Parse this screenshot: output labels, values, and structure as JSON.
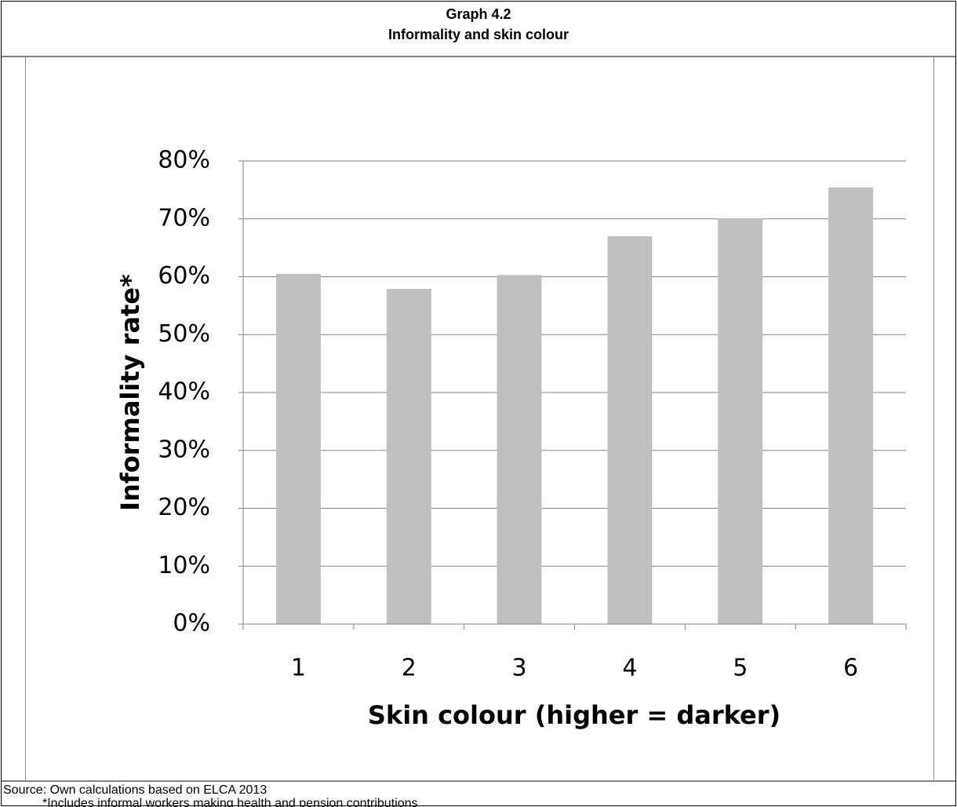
{
  "chart_data": {
    "type": "bar",
    "title": "Graph 4.2",
    "subtitle": "Informality and skin colour",
    "x_label": "Skin colour (higher = darker)",
    "y_label": "Informality rate*",
    "categories": [
      "1",
      "2",
      "3",
      "4",
      "5",
      "6"
    ],
    "values": [
      60.5,
      57.9,
      60.3,
      67.0,
      70.1,
      75.4
    ],
    "color": "#bfbfbf",
    "ylim": [
      0,
      80
    ],
    "yticks": [
      {
        "value": 0,
        "label": "0%"
      },
      {
        "value": 10,
        "label": "10%"
      },
      {
        "value": 20,
        "label": "20%"
      },
      {
        "value": 30,
        "label": "30%"
      },
      {
        "value": 40,
        "label": "40%"
      },
      {
        "value": 50,
        "label": "50%"
      },
      {
        "value": 60,
        "label": "60%"
      },
      {
        "value": 70,
        "label": "70%"
      },
      {
        "value": 80,
        "label": "80%"
      }
    ],
    "grid": true,
    "source": "Source: Own calculations based on ELCA 2013",
    "note": "*Includes informal workers making health and pension contributions"
  }
}
